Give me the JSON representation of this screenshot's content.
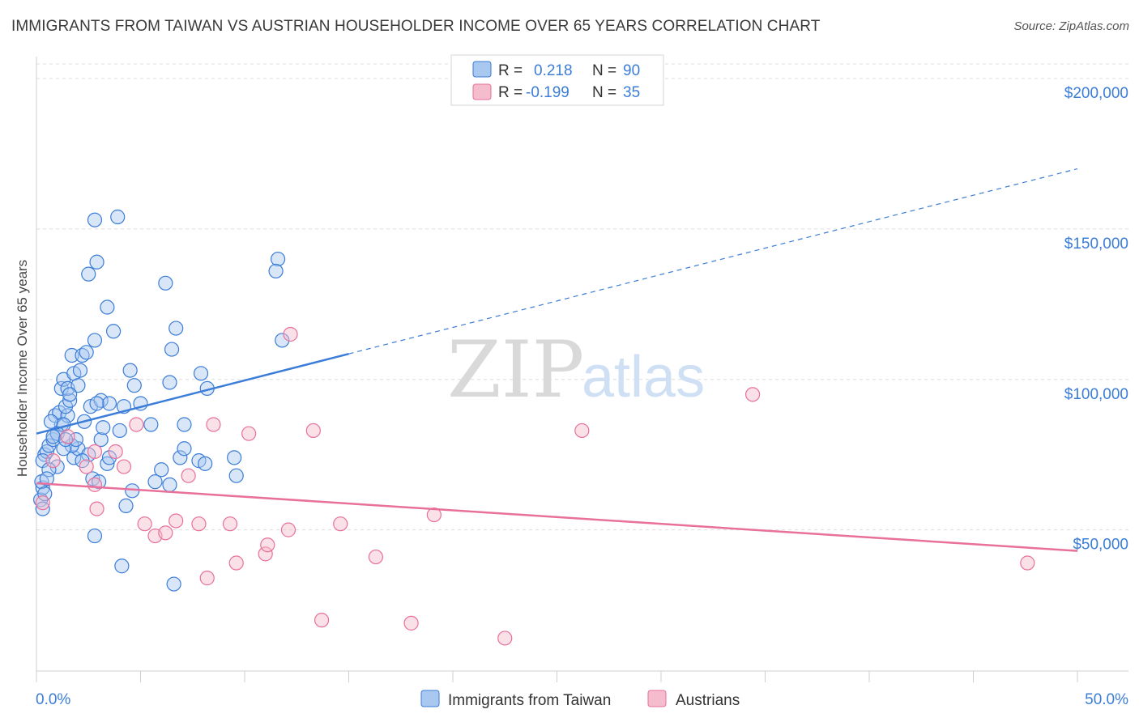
{
  "title": "IMMIGRANTS FROM TAIWAN VS AUSTRIAN HOUSEHOLDER INCOME OVER 65 YEARS CORRELATION CHART",
  "source": "Source: ZipAtlas.com",
  "watermark": {
    "zip": "ZIP",
    "atlas": "atlas"
  },
  "colors": {
    "blue": "#3b7dd8",
    "blue_fill": "#a9c8ef",
    "pink": "#e8709a",
    "pink_fill": "#f5bccd",
    "grid": "#dcdcdc"
  },
  "legend": {
    "rows": [
      {
        "r_label": "R =",
        "r_value": "0.218",
        "n_label": "N =",
        "n_value": "90"
      },
      {
        "r_label": "R =",
        "r_value": "-0.199",
        "n_label": "N =",
        "n_value": "35"
      }
    ]
  },
  "chart_data": {
    "type": "scatter",
    "ylabel": "Householder Income Over 65 years",
    "xlim": [
      0,
      50
    ],
    "ylim": [
      0,
      210000
    ],
    "x_tick_labels": [
      "0.0%",
      "50.0%"
    ],
    "y_ticks": [
      50000,
      100000,
      150000,
      200000
    ],
    "y_tick_labels": [
      "$50,000",
      "$100,000",
      "$150,000",
      "$200,000"
    ],
    "series": [
      {
        "name": "Immigrants from Taiwan",
        "color": "#3b7dd8",
        "r": 0.218,
        "n": 90,
        "trend": {
          "x0": 0,
          "y0": 82000,
          "x1": 15,
          "y1": 108500,
          "x_dash_end": 50,
          "y_dash_end": 170000
        },
        "points": [
          [
            0.2,
            60000
          ],
          [
            0.3,
            64000
          ],
          [
            0.25,
            66000
          ],
          [
            0.4,
            75000
          ],
          [
            0.5,
            76000
          ],
          [
            0.6,
            78000
          ],
          [
            0.3,
            73000
          ],
          [
            0.8,
            80000
          ],
          [
            1.0,
            82000
          ],
          [
            1.2,
            85000
          ],
          [
            0.9,
            88000
          ],
          [
            1.1,
            89000
          ],
          [
            1.5,
            88000
          ],
          [
            1.4,
            91000
          ],
          [
            1.6,
            93000
          ],
          [
            1.2,
            97000
          ],
          [
            1.3,
            100000
          ],
          [
            1.5,
            97000
          ],
          [
            1.8,
            102000
          ],
          [
            2.0,
            98000
          ],
          [
            2.1,
            103000
          ],
          [
            1.7,
            108000
          ],
          [
            2.2,
            108000
          ],
          [
            2.8,
            113000
          ],
          [
            3.7,
            116000
          ],
          [
            3.4,
            124000
          ],
          [
            2.4,
            109000
          ],
          [
            2.5,
            135000
          ],
          [
            2.9,
            139000
          ],
          [
            2.8,
            153000
          ],
          [
            3.9,
            154000
          ],
          [
            4.5,
            103000
          ],
          [
            4.2,
            91000
          ],
          [
            4.7,
            98000
          ],
          [
            5.0,
            92000
          ],
          [
            5.5,
            85000
          ],
          [
            6.2,
            132000
          ],
          [
            6.7,
            117000
          ],
          [
            6.5,
            110000
          ],
          [
            6.4,
            99000
          ],
          [
            7.9,
            102000
          ],
          [
            8.2,
            97000
          ],
          [
            7.1,
            85000
          ],
          [
            1.8,
            74000
          ],
          [
            2.0,
            77000
          ],
          [
            2.5,
            75000
          ],
          [
            2.7,
            67000
          ],
          [
            3.0,
            66000
          ],
          [
            3.4,
            72000
          ],
          [
            3.5,
            74000
          ],
          [
            3.1,
            80000
          ],
          [
            3.2,
            84000
          ],
          [
            2.3,
            86000
          ],
          [
            2.6,
            91000
          ],
          [
            3.1,
            93000
          ],
          [
            4.0,
            83000
          ],
          [
            4.6,
            63000
          ],
          [
            4.3,
            58000
          ],
          [
            4.1,
            38000
          ],
          [
            2.8,
            48000
          ],
          [
            5.7,
            66000
          ],
          [
            6.0,
            70000
          ],
          [
            6.4,
            65000
          ],
          [
            6.9,
            74000
          ],
          [
            7.1,
            77000
          ],
          [
            7.8,
            73000
          ],
          [
            8.1,
            72000
          ],
          [
            9.5,
            74000
          ],
          [
            9.6,
            68000
          ],
          [
            6.6,
            32000
          ],
          [
            11.6,
            140000
          ],
          [
            11.5,
            136000
          ],
          [
            11.8,
            113000
          ],
          [
            1.0,
            71000
          ],
          [
            1.7,
            78000
          ],
          [
            1.9,
            80000
          ],
          [
            2.2,
            73000
          ],
          [
            1.3,
            85000
          ],
          [
            0.6,
            70000
          ],
          [
            1.0,
            82000
          ],
          [
            0.7,
            86000
          ],
          [
            0.5,
            67000
          ],
          [
            3.5,
            92000
          ],
          [
            1.3,
            77000
          ],
          [
            0.8,
            81000
          ],
          [
            1.6,
            95000
          ],
          [
            2.9,
            92000
          ],
          [
            0.3,
            57000
          ],
          [
            0.4,
            62000
          ],
          [
            1.4,
            80000
          ]
        ]
      },
      {
        "name": "Austrians",
        "color": "#e8709a",
        "r": -0.199,
        "n": 35,
        "trend": {
          "x0": 0,
          "y0": 65500,
          "x1": 50,
          "y1": 43000
        },
        "points": [
          [
            0.3,
            59000
          ],
          [
            0.8,
            73000
          ],
          [
            1.5,
            81000
          ],
          [
            2.4,
            71000
          ],
          [
            2.8,
            76000
          ],
          [
            2.8,
            65000
          ],
          [
            3.8,
            76000
          ],
          [
            4.2,
            71000
          ],
          [
            4.8,
            85000
          ],
          [
            5.2,
            52000
          ],
          [
            5.7,
            48000
          ],
          [
            6.2,
            49000
          ],
          [
            6.7,
            53000
          ],
          [
            7.3,
            68000
          ],
          [
            7.8,
            52000
          ],
          [
            8.2,
            34000
          ],
          [
            8.5,
            85000
          ],
          [
            9.3,
            52000
          ],
          [
            9.6,
            39000
          ],
          [
            10.2,
            82000
          ],
          [
            11.0,
            42000
          ],
          [
            11.1,
            45000
          ],
          [
            12.1,
            50000
          ],
          [
            12.2,
            115000
          ],
          [
            13.3,
            83000
          ],
          [
            13.7,
            20000
          ],
          [
            14.6,
            52000
          ],
          [
            16.3,
            41000
          ],
          [
            18.0,
            19000
          ],
          [
            19.1,
            55000
          ],
          [
            22.5,
            14000
          ],
          [
            26.2,
            83000
          ],
          [
            34.4,
            95000
          ],
          [
            47.6,
            39000
          ],
          [
            2.9,
            57000
          ]
        ]
      }
    ]
  }
}
